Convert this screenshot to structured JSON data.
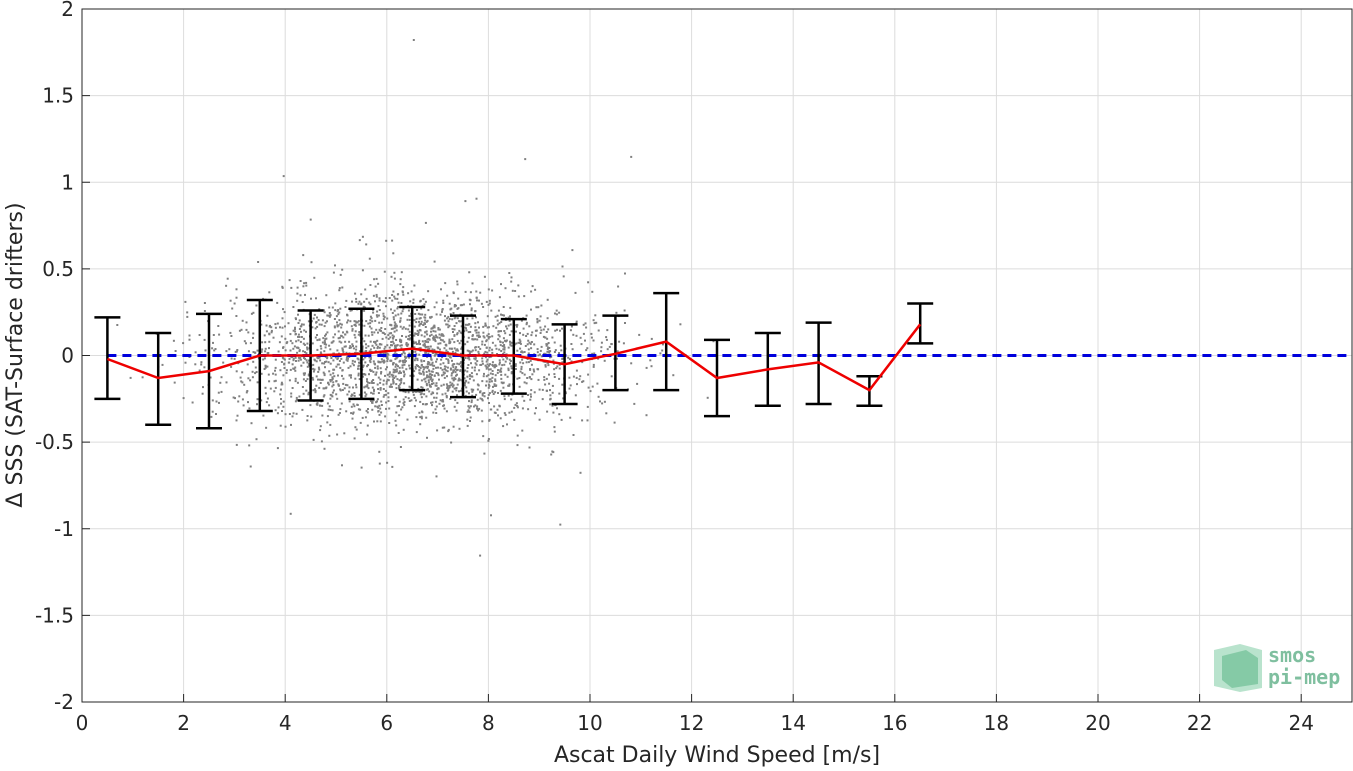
{
  "chart_data": {
    "type": "scatter",
    "xlabel": "Ascat Daily Wind Speed [m/s]",
    "ylabel": "Δ SSS (SAT-Surface drifters)",
    "xlim": [
      0,
      25
    ],
    "ylim": [
      -2,
      2
    ],
    "xticks": [
      0,
      2,
      4,
      6,
      8,
      10,
      12,
      14,
      16,
      18,
      20,
      22,
      24
    ],
    "yticks": [
      -2,
      -1.5,
      -1,
      -0.5,
      0,
      0.5,
      1,
      1.5,
      2
    ],
    "ytick_labels": [
      "-2",
      "-1.5",
      "-1",
      "-0.5",
      "0",
      "0.5",
      "1",
      "1.5",
      "2"
    ],
    "grid": true,
    "reference_line": {
      "y": 0,
      "color": "#0000dd",
      "style": "dashed"
    },
    "scatter_color": "#808080",
    "mean_line_color": "#ee0000",
    "errorbar_color": "#000000",
    "series": [
      {
        "name": "binned statistics",
        "x": [
          0.5,
          1.5,
          2.5,
          3.5,
          4.5,
          5.5,
          6.5,
          7.5,
          8.5,
          9.5,
          10.5,
          11.5,
          12.5,
          13.5,
          14.5,
          15.5,
          16.5
        ],
        "mean": [
          -0.02,
          -0.13,
          -0.09,
          0.0,
          0.0,
          0.01,
          0.04,
          0.0,
          0.0,
          -0.05,
          0.01,
          0.08,
          -0.13,
          -0.08,
          -0.04,
          -0.2,
          0.18
        ],
        "upper": [
          0.22,
          0.13,
          0.24,
          0.32,
          0.26,
          0.27,
          0.28,
          0.23,
          0.21,
          0.18,
          0.23,
          0.36,
          0.09,
          0.13,
          0.19,
          -0.12,
          0.3
        ],
        "lower": [
          -0.25,
          -0.4,
          -0.42,
          -0.32,
          -0.26,
          -0.25,
          -0.2,
          -0.24,
          -0.22,
          -0.28,
          -0.2,
          -0.2,
          -0.35,
          -0.29,
          -0.28,
          -0.29,
          0.07
        ]
      }
    ],
    "scatter_density": {
      "x_range": [
        0.5,
        16.9
      ],
      "peak_wind": 6.5,
      "spread": 0.25
    }
  },
  "logo": {
    "line1": "smos",
    "line2": "pi-mep"
  }
}
